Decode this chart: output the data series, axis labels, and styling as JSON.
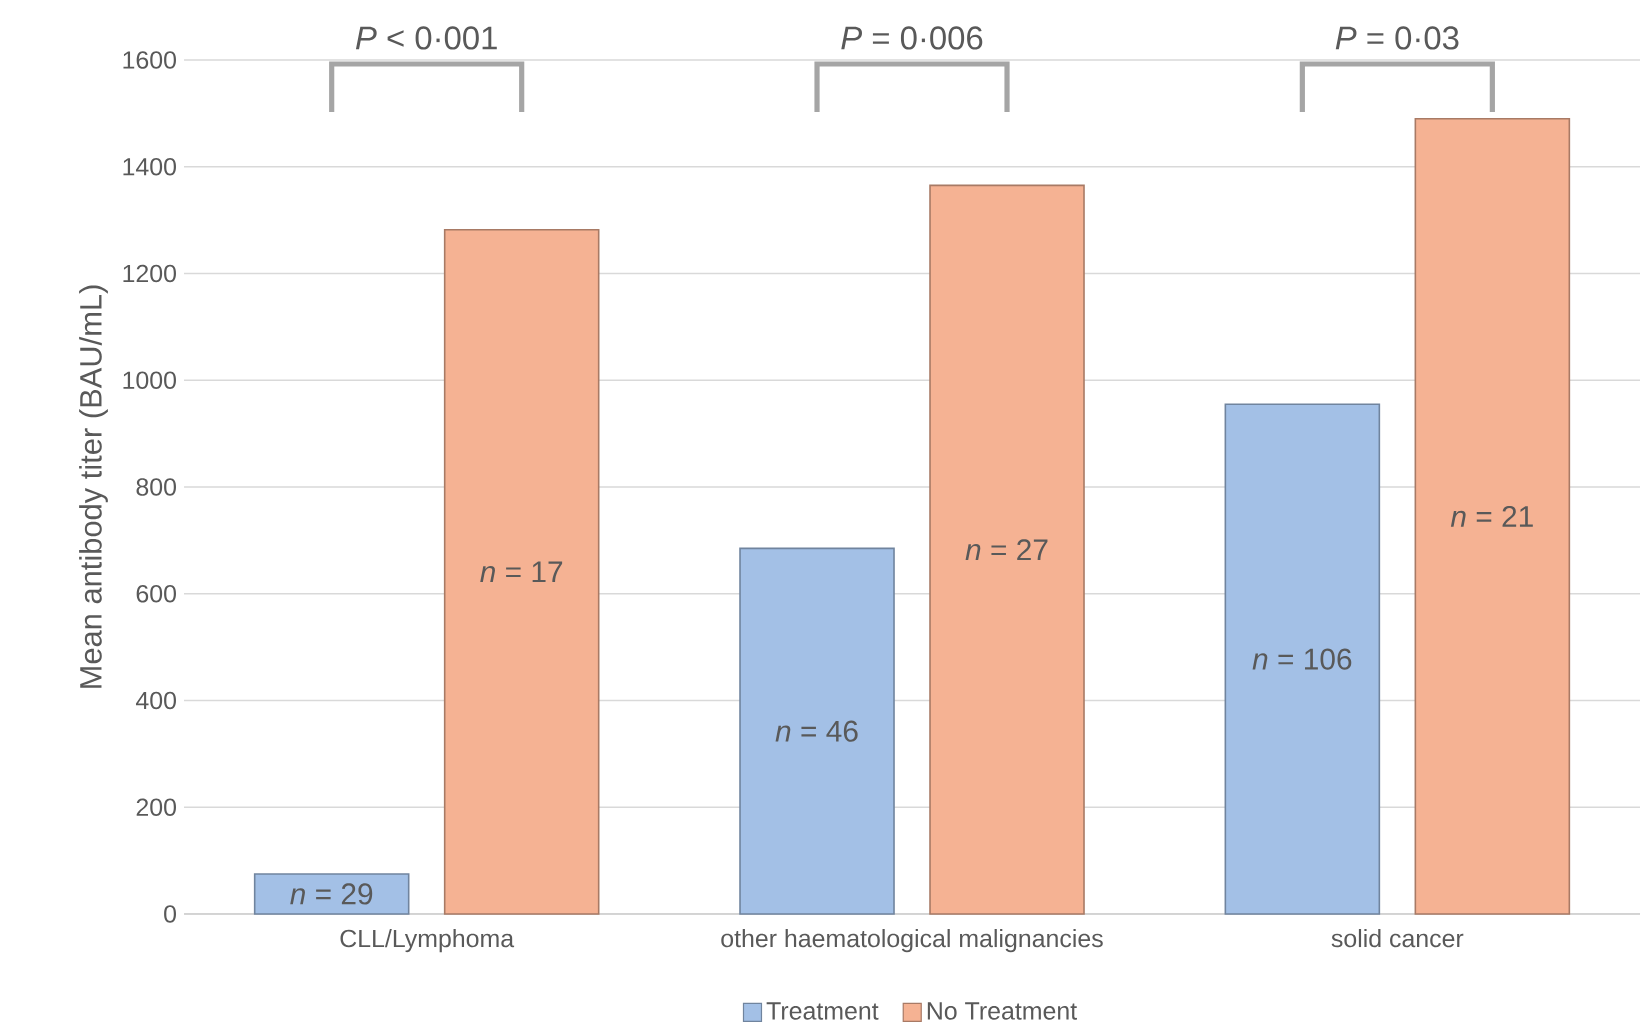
{
  "chart_data": {
    "type": "bar",
    "ylabel": "Mean antibody titer (BAU/mL)",
    "categories": [
      "CLL/Lymphoma",
      "other haematological malignancies",
      "solid cancer"
    ],
    "series": [
      {
        "name": "Treatment",
        "color": "#a3c0e6",
        "values": [
          75,
          685,
          955
        ]
      },
      {
        "name": "No Treatment",
        "color": "#f5b293",
        "values": [
          1282,
          1365,
          1490
        ]
      }
    ],
    "annotations": [
      "*P* < 0·001",
      "*P* = 0·006",
      "*P* = 0·03",
      "*n* = 29",
      "*n* = 46",
      "*n* = 106",
      "*n* = 17",
      "*n* = 27",
      "*n* = 21"
    ],
    "ylim": [
      0,
      1600
    ],
    "yticks": [
      0,
      200,
      400,
      600,
      800,
      1000,
      1200,
      1400,
      1600
    ],
    "grid": "y",
    "legend": "bottom"
  }
}
